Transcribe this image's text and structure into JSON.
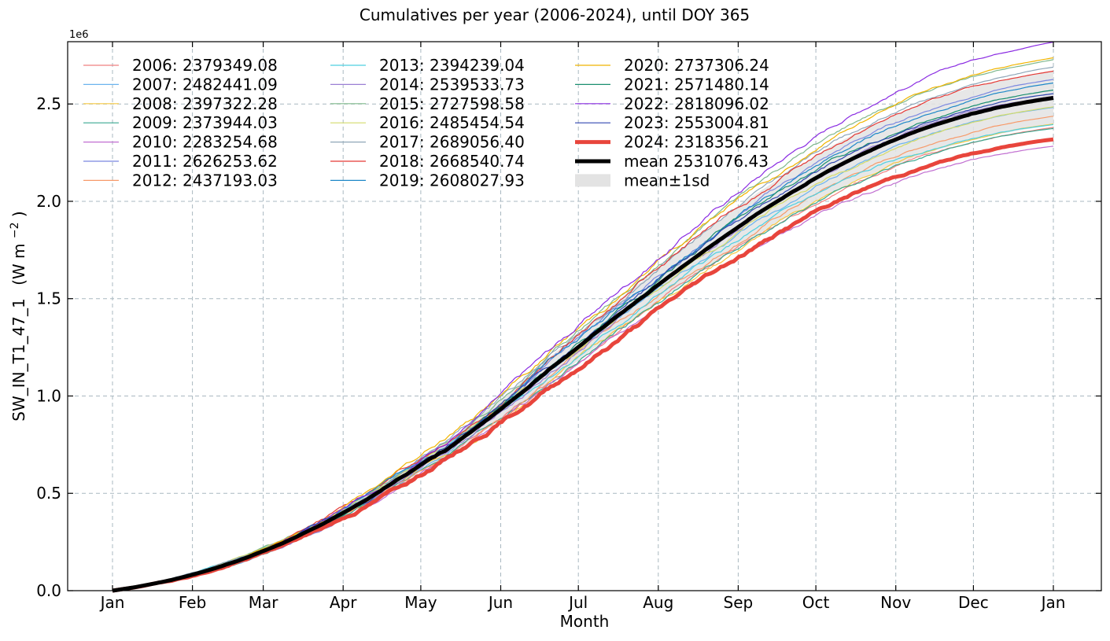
{
  "chart_data": {
    "type": "line",
    "title": "Cumulatives per year (2006-2024), until DOY 365",
    "xlabel": "Month",
    "ylabel": "SW_IN_T1_47_1",
    "ylabel_units_prefix": "(W m",
    "ylabel_units_exp": "−2",
    "ylabel_units_suffix": ")",
    "y_offset_text": "1e6",
    "x_doy_range": [
      -24,
      389
    ],
    "ylim": [
      0,
      2820000
    ],
    "grid": true,
    "legend_position": "upper-left",
    "x_ticks": [
      {
        "label": "Jan",
        "doy": 0
      },
      {
        "label": "Feb",
        "doy": 35
      },
      {
        "label": "Mar",
        "doy": 66
      },
      {
        "label": "Apr",
        "doy": 101
      },
      {
        "label": "May",
        "doy": 135
      },
      {
        "label": "Jun",
        "doy": 170
      },
      {
        "label": "Jul",
        "doy": 204
      },
      {
        "label": "Aug",
        "doy": 239
      },
      {
        "label": "Sep",
        "doy": 274
      },
      {
        "label": "Oct",
        "doy": 308
      },
      {
        "label": "Nov",
        "doy": 343
      },
      {
        "label": "Dec",
        "doy": 377
      },
      {
        "label": "Jan",
        "doy": 412
      }
    ],
    "y_ticks": [
      {
        "label": "0.0",
        "value": 0
      },
      {
        "label": "0.5",
        "value": 500000
      },
      {
        "label": "1.0",
        "value": 1000000
      },
      {
        "label": "1.5",
        "value": 1500000
      },
      {
        "label": "2.0",
        "value": 2000000
      },
      {
        "label": "2.5",
        "value": 2500000
      }
    ],
    "series": [
      {
        "name": "2006: 2379349.08",
        "total": 2379349.08,
        "color": "#f08080",
        "k": 0.992,
        "seed": 1
      },
      {
        "name": "2007: 2482441.09",
        "total": 2482441.09,
        "color": "#6cb4ee",
        "k": 1.0,
        "seed": 2
      },
      {
        "name": "2008: 2397322.28",
        "total": 2397322.28,
        "color": "#f5c842",
        "k": 0.99,
        "seed": 3
      },
      {
        "name": "2009: 2373944.03",
        "total": 2373944.03,
        "color": "#3aa890",
        "k": 0.985,
        "seed": 4
      },
      {
        "name": "2010: 2283254.68",
        "total": 2283254.68,
        "color": "#c16fd1",
        "k": 0.97,
        "seed": 5
      },
      {
        "name": "2011: 2626253.62",
        "total": 2626253.62,
        "color": "#7b88e0",
        "k": 1.005,
        "seed": 6
      },
      {
        "name": "2012: 2437193.03",
        "total": 2437193.03,
        "color": "#f79a6a",
        "k": 0.99,
        "seed": 7
      },
      {
        "name": "2013: 2394239.04",
        "total": 2394239.04,
        "color": "#4dd0e1",
        "k": 0.955,
        "seed": 8
      },
      {
        "name": "2014: 2539533.73",
        "total": 2539533.73,
        "color": "#9b7fd4",
        "k": 1.02,
        "seed": 9
      },
      {
        "name": "2015: 2727598.58",
        "total": 2727598.58,
        "color": "#7fb88c",
        "k": 1.01,
        "seed": 10
      },
      {
        "name": "2016: 2485454.54",
        "total": 2485454.54,
        "color": "#d4dc6a",
        "k": 0.97,
        "seed": 11
      },
      {
        "name": "2017: 2689056.40",
        "total": 2689056.4,
        "color": "#8fa6b8",
        "k": 1.0,
        "seed": 12
      },
      {
        "name": "2018: 2668540.74",
        "total": 2668540.74,
        "color": "#e53935",
        "k": 0.995,
        "seed": 13
      },
      {
        "name": "2019: 2608027.93",
        "total": 2608027.93,
        "color": "#1e88c8",
        "k": 1.0,
        "seed": 14
      },
      {
        "name": "2020: 2737306.24",
        "total": 2737306.24,
        "color": "#f0b400",
        "k": 1.01,
        "seed": 15
      },
      {
        "name": "2021: 2571480.14",
        "total": 2571480.14,
        "color": "#1a8f70",
        "k": 1.0,
        "seed": 16
      },
      {
        "name": "2022: 2818096.02",
        "total": 2818096.02,
        "color": "#8a2be2",
        "k": 1.035,
        "seed": 17
      },
      {
        "name": "2023: 2553004.81",
        "total": 2553004.81,
        "color": "#3146b0",
        "k": 0.99,
        "seed": 18
      },
      {
        "name": "2024: 2318356.21",
        "total": 2318356.21,
        "color": "#e8453c",
        "k": 0.985,
        "seed": 19,
        "bold": true
      }
    ],
    "mean": {
      "name": "mean 2531076.43",
      "total": 2531076.43,
      "color": "#000000"
    },
    "band": {
      "name": "mean±1sd",
      "color": "#e3e3e3",
      "sd_end": 140000
    }
  }
}
